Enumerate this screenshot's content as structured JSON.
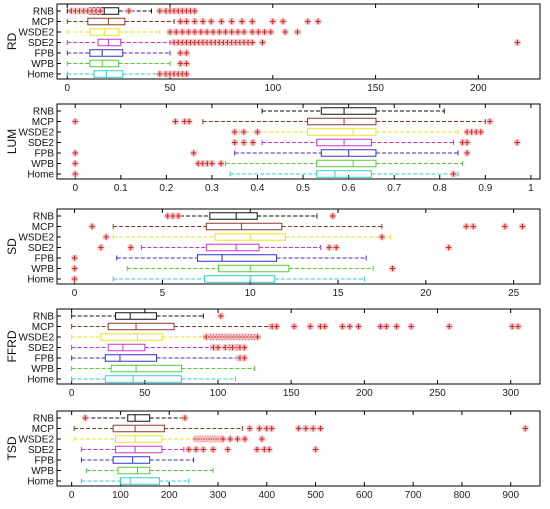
{
  "chart_data": [
    {
      "type": "box",
      "ylabel": "RD",
      "xlim": [
        -5,
        230
      ],
      "xticks": [
        0,
        50,
        100,
        150,
        200
      ],
      "categories": [
        "RNB",
        "MCP",
        "WSDE2",
        "SDE2",
        "FPB",
        "WPB",
        "Home"
      ],
      "series": [
        {
          "whisker_low": 0,
          "q1": 11,
          "median": 18,
          "q3": 25,
          "whisker_high": 41,
          "outliers": [
            2,
            4,
            6,
            8,
            10,
            12,
            14,
            16,
            30,
            45,
            48,
            50,
            52,
            54,
            56,
            58,
            60,
            62
          ]
        },
        {
          "whisker_low": 0,
          "q1": 10,
          "median": 20,
          "q3": 28,
          "whisker_high": 52,
          "outliers": [
            55,
            58,
            62,
            66,
            70,
            75,
            80,
            85,
            90,
            100,
            105,
            117,
            122
          ]
        },
        {
          "whisker_low": 0,
          "q1": 11,
          "median": 18,
          "q3": 25,
          "whisker_high": 45,
          "outliers": [
            50,
            53,
            56,
            59,
            62,
            65,
            68,
            71,
            74,
            77,
            80,
            83,
            86,
            90,
            93,
            96,
            99,
            106,
            112
          ]
        },
        {
          "whisker_low": 0,
          "q1": 15,
          "median": 20,
          "q3": 26,
          "whisker_high": 50,
          "outliers": [
            52,
            54,
            56,
            58,
            60,
            62,
            64,
            66,
            68,
            70,
            72,
            74,
            76,
            78,
            80,
            82,
            84,
            86,
            88,
            90,
            95,
            219
          ]
        },
        {
          "whisker_low": 0,
          "q1": 11,
          "median": 17,
          "q3": 27,
          "whisker_high": 50,
          "outliers": [
            55,
            58
          ]
        },
        {
          "whisker_low": 0,
          "q1": 11,
          "median": 17,
          "q3": 25,
          "whisker_high": 50,
          "outliers": [
            55,
            58
          ]
        },
        {
          "whisker_low": 0,
          "q1": 13,
          "median": 19,
          "q3": 27,
          "whisker_high": 44,
          "outliers": [
            45,
            48,
            50,
            52,
            54,
            56,
            58
          ]
        }
      ]
    },
    {
      "type": "box",
      "ylabel": "LUM",
      "xlim": [
        -0.04,
        1.02
      ],
      "xticks": [
        0,
        0.1,
        0.2,
        0.3,
        0.4,
        0.5,
        0.6,
        0.7,
        0.8,
        0.9,
        1
      ],
      "categories": [
        "RNB",
        "MCP",
        "WSDE2",
        "SDE2",
        "FPB",
        "WPB",
        "Home"
      ],
      "series": [
        {
          "whisker_low": 0.41,
          "q1": 0.54,
          "median": 0.59,
          "q3": 0.66,
          "whisker_high": 0.81,
          "outliers": []
        },
        {
          "whisker_low": 0.28,
          "q1": 0.51,
          "median": 0.59,
          "q3": 0.66,
          "whisker_high": 0.9,
          "outliers": [
            0.0,
            0.22,
            0.24,
            0.25,
            0.91
          ]
        },
        {
          "whisker_low": 0.36,
          "q1": 0.51,
          "median": 0.61,
          "q3": 0.66,
          "whisker_high": 0.84,
          "outliers": [
            0.35,
            0.37,
            0.4,
            0.86,
            0.87,
            0.88,
            0.89
          ]
        },
        {
          "whisker_low": 0.41,
          "q1": 0.53,
          "median": 0.59,
          "q3": 0.65,
          "whisker_high": 0.83,
          "outliers": [
            0.35,
            0.37,
            0.39,
            0.85,
            0.86,
            0.97
          ]
        },
        {
          "whisker_low": 0.35,
          "q1": 0.54,
          "median": 0.6,
          "q3": 0.66,
          "whisker_high": 0.84,
          "outliers": [
            0.0,
            0.26,
            0.86
          ]
        },
        {
          "whisker_low": 0.33,
          "q1": 0.53,
          "median": 0.61,
          "q3": 0.66,
          "whisker_high": 0.85,
          "outliers": [
            0.0,
            0.27,
            0.28,
            0.29,
            0.3,
            0.32
          ]
        },
        {
          "whisker_low": 0.34,
          "q1": 0.53,
          "median": 0.57,
          "q3": 0.65,
          "whisker_high": 0.84,
          "outliers": [
            0.0,
            0.83
          ]
        }
      ]
    },
    {
      "type": "box",
      "ylabel": "SD",
      "xlim": [
        -1,
        26.5
      ],
      "xticks": [
        0,
        5,
        10,
        15,
        20,
        25
      ],
      "categories": [
        "RNB",
        "MCP",
        "WSDE2",
        "SDE2",
        "FPB",
        "WPB",
        "Home"
      ],
      "series": [
        {
          "whisker_low": 6.0,
          "q1": 7.7,
          "median": 9.2,
          "q3": 10.4,
          "whisker_high": 13.8,
          "outliers": [
            5.3,
            5.6,
            5.9,
            14.7
          ]
        },
        {
          "whisker_low": 2.2,
          "q1": 7.5,
          "median": 9.5,
          "q3": 11.8,
          "whisker_high": 17.5,
          "outliers": [
            1.0,
            22.3,
            22.7,
            24.5,
            25.5
          ]
        },
        {
          "whisker_low": 2.2,
          "q1": 8.0,
          "median": 10.0,
          "q3": 12.0,
          "whisker_high": 18.0,
          "outliers": [
            1.8,
            17.5
          ]
        },
        {
          "whisker_low": 3.8,
          "q1": 7.5,
          "median": 9.2,
          "q3": 10.5,
          "whisker_high": 14.0,
          "outliers": [
            1.5,
            3.2,
            14.5,
            14.9,
            21.3
          ]
        },
        {
          "whisker_low": 2.4,
          "q1": 7.0,
          "median": 8.4,
          "q3": 11.5,
          "whisker_high": 16.6,
          "outliers": [
            0.0
          ]
        },
        {
          "whisker_low": 3.0,
          "q1": 8.2,
          "median": 10.0,
          "q3": 12.2,
          "whisker_high": 17.0,
          "outliers": [
            0.0,
            18.1
          ]
        },
        {
          "whisker_low": 2.2,
          "q1": 7.4,
          "median": 10.0,
          "q3": 11.4,
          "whisker_high": 16.5,
          "outliers": [
            0.0
          ]
        }
      ]
    },
    {
      "type": "box",
      "ylabel": "FFRD",
      "xlim": [
        -10,
        320
      ],
      "xticks": [
        0,
        50,
        100,
        150,
        200,
        250,
        300
      ],
      "categories": [
        "RNB",
        "MCP",
        "WSDE2",
        "SDE2",
        "FPB",
        "WPB",
        "Home"
      ],
      "series": [
        {
          "whisker_low": 0,
          "q1": 30,
          "median": 40,
          "q3": 58,
          "whisker_high": 90,
          "outliers": [
            102
          ]
        },
        {
          "whisker_low": 0,
          "q1": 25,
          "median": 44,
          "q3": 70,
          "whisker_high": 135,
          "outliers": [
            137,
            140,
            152,
            163,
            170,
            173,
            185,
            190,
            196,
            211,
            215,
            222,
            232,
            258,
            301,
            305
          ]
        },
        {
          "whisker_low": 0,
          "q1": 20,
          "median": 45,
          "q3": 62,
          "whisker_high": 90,
          "outliers": [
            92,
            95,
            97,
            99,
            101,
            103,
            105,
            107,
            109,
            111,
            113,
            115,
            117,
            119,
            121,
            123,
            125,
            127
          ]
        },
        {
          "whisker_low": 0,
          "q1": 25,
          "median": 35,
          "q3": 50,
          "whisker_high": 95,
          "outliers": [
            97,
            100,
            105,
            108,
            110,
            113,
            115,
            118
          ]
        },
        {
          "whisker_low": 0,
          "q1": 23,
          "median": 33,
          "q3": 58,
          "whisker_high": 113,
          "outliers": [
            115,
            118
          ]
        },
        {
          "whisker_low": 0,
          "q1": 27,
          "median": 44,
          "q3": 75,
          "whisker_high": 125,
          "outliers": []
        },
        {
          "whisker_low": 0,
          "q1": 23,
          "median": 42,
          "q3": 75,
          "whisker_high": 112,
          "outliers": []
        }
      ]
    },
    {
      "type": "box",
      "ylabel": "TSD",
      "xlim": [
        -30,
        960
      ],
      "xticks": [
        0,
        100,
        200,
        300,
        400,
        500,
        600,
        700,
        800,
        900
      ],
      "categories": [
        "RNB",
        "MCP",
        "WSDE2",
        "SDE2",
        "FPB",
        "WPB",
        "Home"
      ],
      "series": [
        {
          "whisker_low": 28,
          "q1": 115,
          "median": 130,
          "q3": 160,
          "whisker_high": 230,
          "outliers": [
            28,
            232
          ]
        },
        {
          "whisker_low": 5,
          "q1": 85,
          "median": 130,
          "q3": 190,
          "whisker_high": 350,
          "outliers": [
            365,
            385,
            400,
            410,
            465,
            480,
            495,
            510,
            930
          ]
        },
        {
          "whisker_low": 5,
          "q1": 90,
          "median": 130,
          "q3": 185,
          "whisker_high": 250,
          "outliers": [
            255,
            260,
            265,
            270,
            275,
            280,
            285,
            290,
            295,
            300,
            305,
            310,
            325,
            340,
            355,
            390
          ]
        },
        {
          "whisker_low": 20,
          "q1": 90,
          "median": 130,
          "q3": 185,
          "whisker_high": 230,
          "outliers": [
            240,
            255,
            270,
            290,
            320,
            380,
            395,
            405,
            500
          ]
        },
        {
          "whisker_low": 20,
          "q1": 85,
          "median": 125,
          "q3": 160,
          "whisker_high": 250,
          "outliers": []
        },
        {
          "whisker_low": 30,
          "q1": 95,
          "median": 135,
          "q3": 160,
          "whisker_high": 290,
          "outliers": []
        },
        {
          "whisker_low": 20,
          "q1": 100,
          "median": 120,
          "q3": 180,
          "whisker_high": 240,
          "outliers": []
        }
      ]
    }
  ],
  "colors": {
    "series": [
      "#111111",
      "#8b3a2a",
      "#e6e61a",
      "#cc33cc",
      "#3333cc",
      "#55cc33",
      "#33cccc"
    ],
    "outlier_marker": "#cc2a2a",
    "outlier_halo": "#f6c6c6",
    "axes": "#000000",
    "background": "#ffffff"
  }
}
